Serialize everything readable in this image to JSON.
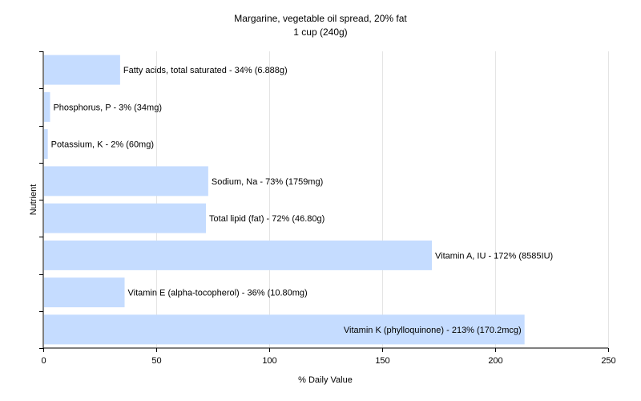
{
  "chart_data": {
    "type": "bar",
    "orientation": "horizontal",
    "title": "Margarine, vegetable oil spread, 20% fat",
    "subtitle": "1 cup (240g)",
    "xlabel": "% Daily Value",
    "ylabel": "Nutrient",
    "xlim": [
      0,
      250
    ],
    "xticks": [
      0,
      50,
      100,
      150,
      200,
      250
    ],
    "grid": true,
    "bar_color": "#c5dcff",
    "categories": [
      "Fatty acids, total saturated",
      "Phosphorus, P",
      "Potassium, K",
      "Sodium, Na",
      "Total lipid (fat)",
      "Vitamin A, IU",
      "Vitamin E (alpha-tocopherol)",
      "Vitamin K (phylloquinone)"
    ],
    "values": [
      34,
      3,
      2,
      73,
      72,
      172,
      36,
      213
    ],
    "labels": [
      "Fatty acids, total saturated - 34% (6.888g)",
      "Phosphorus, P - 3% (34mg)",
      "Potassium, K - 2% (60mg)",
      "Sodium, Na - 73% (1759mg)",
      "Total lipid (fat) - 72% (46.80g)",
      "Vitamin A, IU - 172% (8585IU)",
      "Vitamin E (alpha-tocopherol) - 36% (10.80mg)",
      "Vitamin K (phylloquinone) - 213% (170.2mcg)"
    ]
  }
}
